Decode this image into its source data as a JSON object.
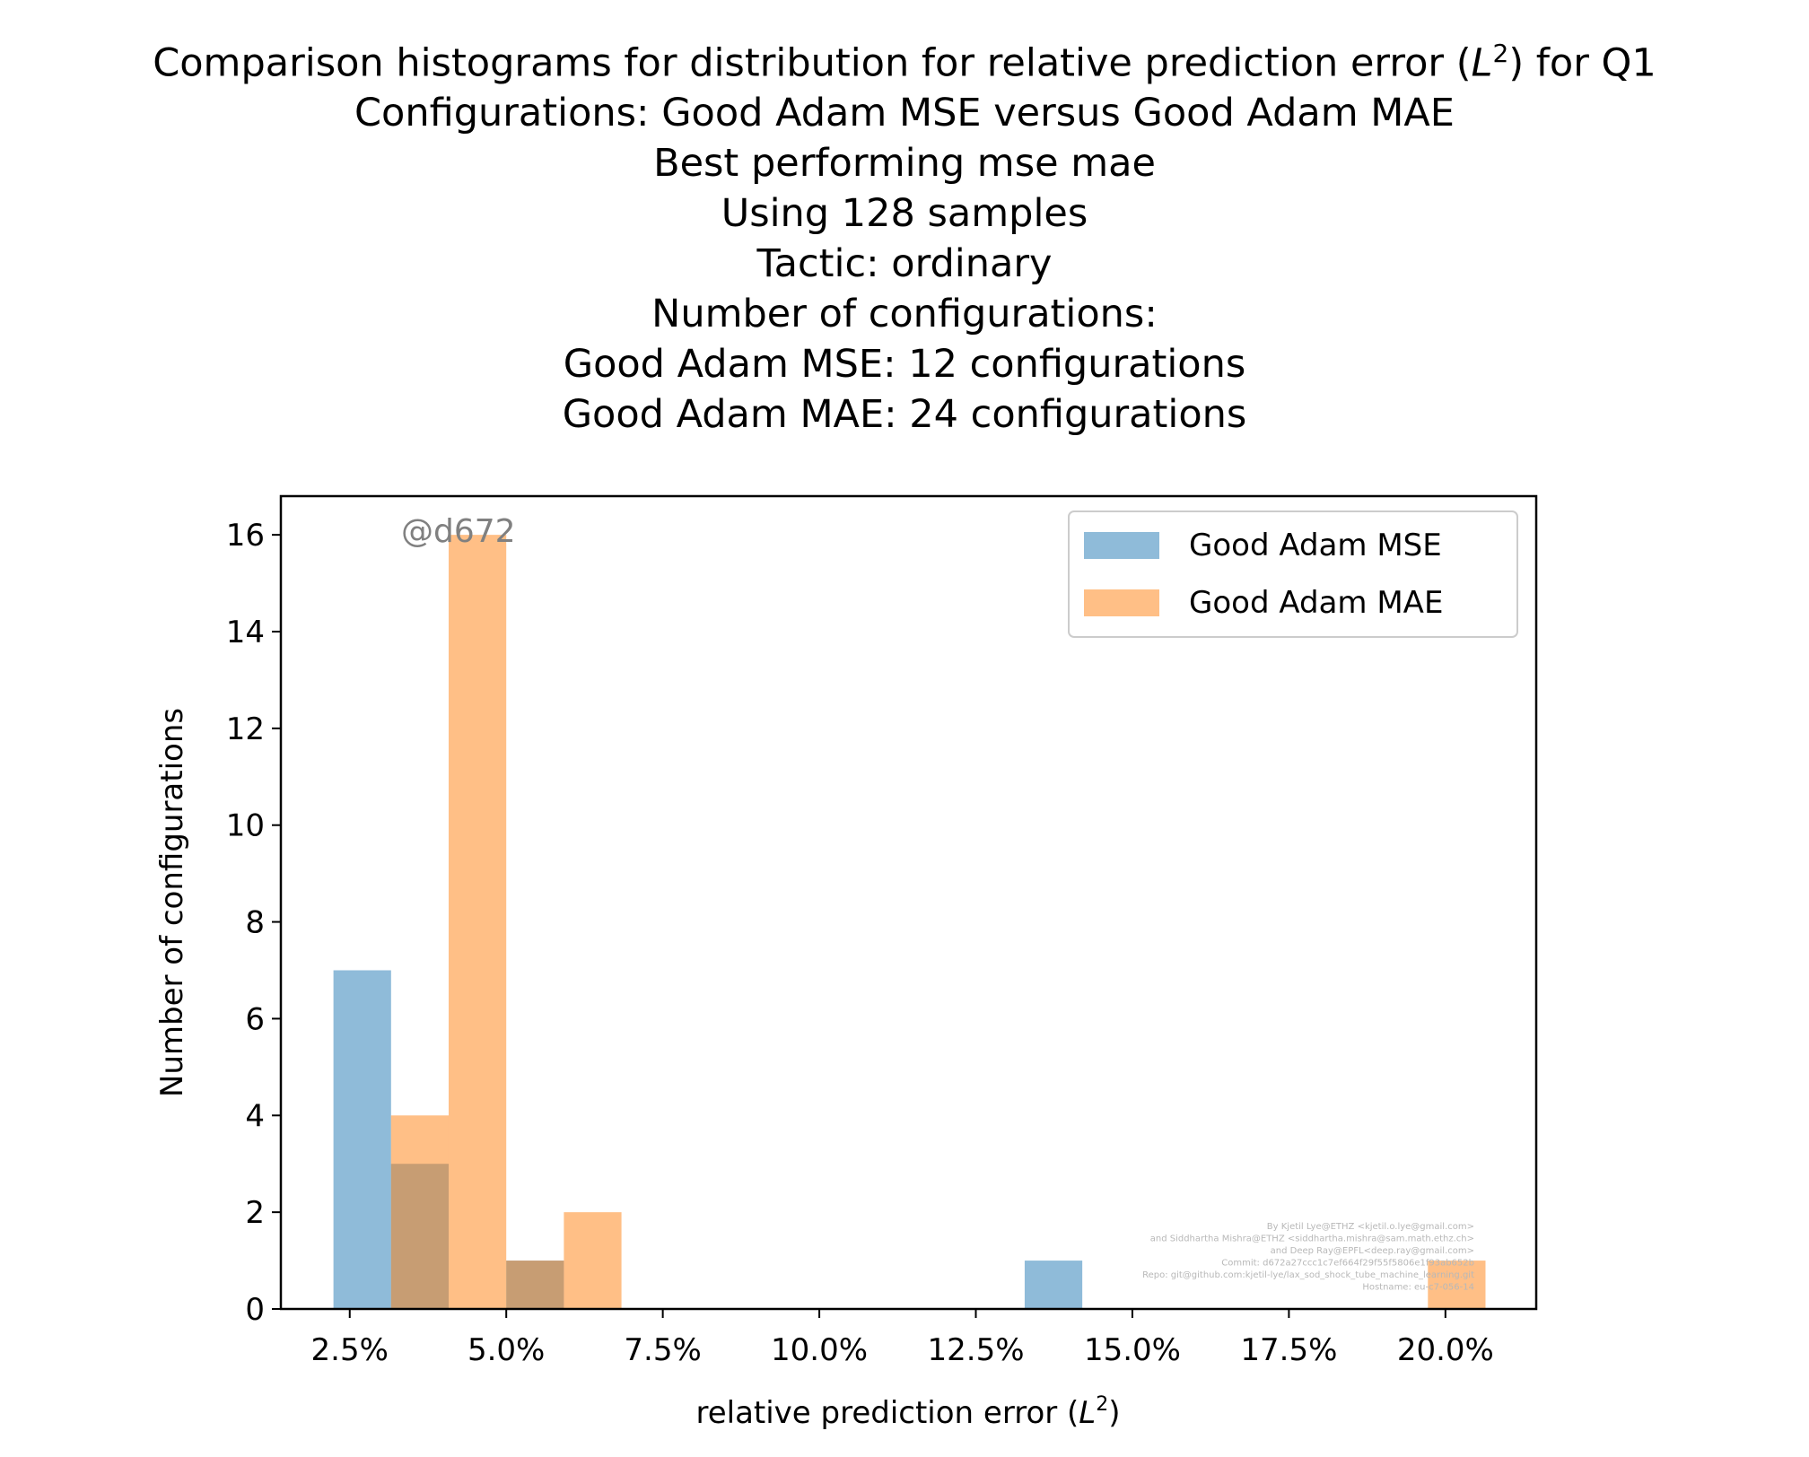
{
  "chart_data": {
    "type": "bar",
    "title_lines": [
      "Comparison histograms for distribution for relative prediction error (L²) for Q1",
      "Configurations: Good Adam MSE versus Good Adam MAE",
      "Best performing mse mae",
      "Using 128 samples",
      "Tactic: ordinary",
      "Number of configurations:",
      "Good Adam MSE: 12 configurations",
      "Good Adam MAE: 24 configurations"
    ],
    "xlabel": "relative prediction error (L²)",
    "ylabel": "Number of configurations",
    "xlim": [
      0.014,
      0.2145
    ],
    "ylim": [
      0,
      16.8
    ],
    "x_ticks": [
      0.025,
      0.05,
      0.075,
      0.1,
      0.125,
      0.15,
      0.175,
      0.2
    ],
    "x_tick_labels": [
      "2.5%",
      "5.0%",
      "7.5%",
      "10.0%",
      "12.5%",
      "15.0%",
      "17.5%",
      "20.0%"
    ],
    "y_ticks": [
      0,
      2,
      4,
      6,
      8,
      10,
      12,
      14,
      16
    ],
    "y_tick_labels": [
      "0",
      "2",
      "4",
      "6",
      "8",
      "10",
      "12",
      "14",
      "16"
    ],
    "grid": false,
    "legend_position": "top-right",
    "series": [
      {
        "name": "Good Adam MSE",
        "color": "#1f77b4",
        "bins": [
          {
            "x0": 0.0224,
            "x1": 0.0316,
            "count": 7
          },
          {
            "x0": 0.0316,
            "x1": 0.0408,
            "count": 3
          },
          {
            "x0": 0.05,
            "x1": 0.0592,
            "count": 1
          },
          {
            "x0": 0.1328,
            "x1": 0.142,
            "count": 1
          }
        ]
      },
      {
        "name": "Good Adam MAE",
        "color": "#ff7f0e",
        "bins": [
          {
            "x0": 0.0316,
            "x1": 0.0408,
            "count": 4
          },
          {
            "x0": 0.0408,
            "x1": 0.05,
            "count": 16
          },
          {
            "x0": 0.05,
            "x1": 0.0592,
            "count": 1
          },
          {
            "x0": 0.0592,
            "x1": 0.0684,
            "count": 2
          },
          {
            "x0": 0.1972,
            "x1": 0.2064,
            "count": 1
          }
        ]
      }
    ],
    "annotation": "@d672",
    "footer_lines": [
      "By Kjetil Lye@ETHZ <kjetil.o.lye@gmail.com>",
      "and Siddhartha Mishra@ETHZ <siddhartha.mishra@sam.math.ethz.ch>",
      "and Deep Ray@EPFL<deep.ray@gmail.com>",
      "Commit: d672a27ccc1c7ef664f29f55f5806e1f93ab652b",
      "Repo: git@github.com:kjetil-lye/lax_sod_shock_tube_machine_learning.git",
      "Hostname: eu-c7-056-14"
    ]
  }
}
